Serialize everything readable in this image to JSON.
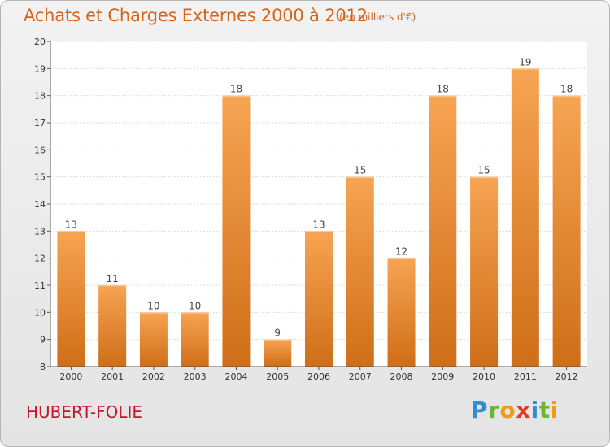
{
  "header": {
    "title": "Achats et Charges Externes 2000 à 2012",
    "unit": "(en milliers d'€)"
  },
  "footer": {
    "place": "HUBERT-FOLIE",
    "logo_letters": [
      "P",
      "r",
      "o",
      "x",
      "i",
      "t",
      "i"
    ]
  },
  "colors": {
    "bar_top": "#f7a452",
    "bar_bottom": "#cf6e18",
    "title": "#d2661c",
    "place": "#c4182e"
  },
  "chart_data": {
    "type": "bar",
    "title": "Achats et Charges Externes 2000 à 2012",
    "categories": [
      "2000",
      "2001",
      "2002",
      "2003",
      "2004",
      "2005",
      "2006",
      "2007",
      "2008",
      "2009",
      "2010",
      "2011",
      "2012"
    ],
    "values": [
      13,
      11,
      10,
      10,
      18,
      9,
      13,
      15,
      12,
      18,
      15,
      19,
      18
    ],
    "data_labels": [
      "13",
      "11",
      "10",
      "10",
      "18",
      "9",
      "13",
      "15",
      "12",
      "18",
      "15",
      "19",
      "18"
    ],
    "ylim": [
      8,
      20
    ],
    "yticks": [
      8,
      9,
      10,
      11,
      12,
      13,
      14,
      15,
      16,
      17,
      18,
      19,
      20
    ],
    "ytick_labels": [
      "8",
      "9",
      "10",
      "11",
      "12",
      "13",
      "14",
      "15",
      "16",
      "17",
      "18",
      "19",
      "20"
    ],
    "xlabel": "",
    "ylabel": "",
    "grid": true,
    "legend": false
  }
}
